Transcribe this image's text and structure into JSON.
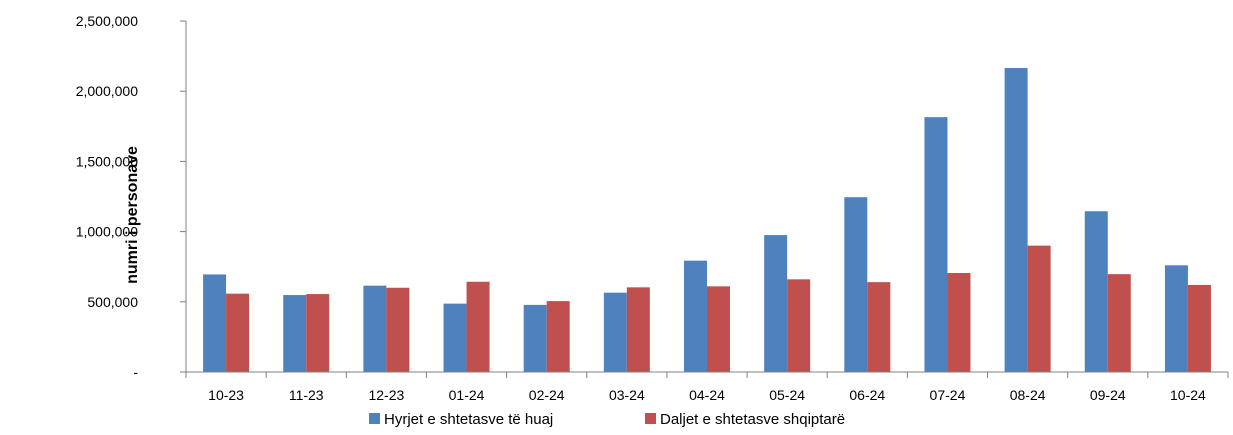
{
  "chart_data": {
    "type": "bar",
    "title": "",
    "xlabel": "",
    "ylabel": "numri i personave",
    "ylim": [
      0,
      2500000
    ],
    "yticks": [
      0,
      500000,
      1000000,
      1500000,
      2000000,
      2500000
    ],
    "ytick_labels": [
      "-",
      "500,000",
      "1,000,000",
      "1,500,000",
      "2,000,000",
      "2,500,000"
    ],
    "grid": false,
    "legend_position": "bottom",
    "categories": [
      "10-23",
      "11-23",
      "12-23",
      "01-24",
      "02-24",
      "03-24",
      "04-24",
      "05-24",
      "06-24",
      "07-24",
      "08-24",
      "09-24",
      "10-24"
    ],
    "series": [
      {
        "name": "Hyrjet e shtetasve të huaj",
        "color": "#4f81bd",
        "values": [
          695000,
          548000,
          615000,
          487000,
          478000,
          565000,
          793000,
          975000,
          1245000,
          1815000,
          2165000,
          1145000,
          760000
        ]
      },
      {
        "name": "Daljet e shtetasve shqiptarë",
        "color": "#c0504d",
        "values": [
          558000,
          555000,
          600000,
          643000,
          505000,
          603000,
          610000,
          660000,
          640000,
          705000,
          900000,
          697000,
          620000
        ]
      }
    ]
  }
}
